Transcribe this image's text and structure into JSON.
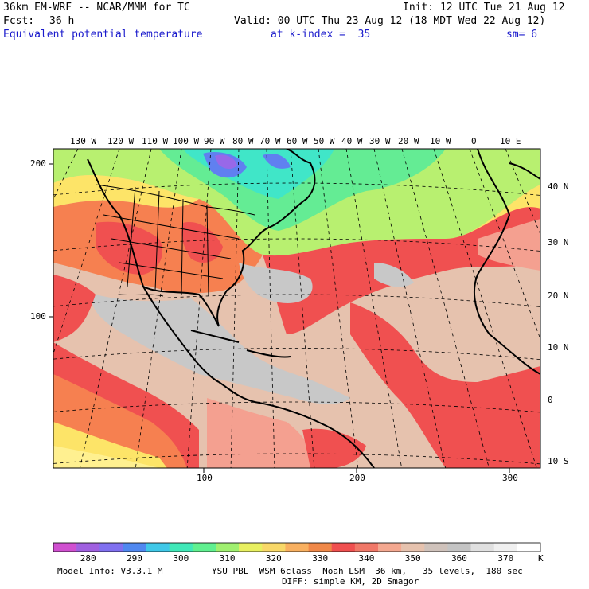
{
  "header": {
    "model_title": "36km EM-WRF -- NCAR/MMM for TC",
    "init": "Init: 12 UTC Tue 21 Aug 12",
    "forecast_label": "Fcst:",
    "forecast_hours": "36 h",
    "valid": "Valid: 00 UTC Thu 23 Aug 12 (18 MDT Wed 22 Aug 12)",
    "field_name": "Equivalent potential temperature",
    "level": "at k-index =  35",
    "smoothing": "sm= 6"
  },
  "map": {
    "longitude_labels": [
      "130 W",
      "120 W",
      "110 W",
      "100 W",
      "90 W",
      "80 W",
      "70 W",
      "60 W",
      "50 W",
      "40 W",
      "30 W",
      "20 W",
      "10 W",
      "0",
      "10 E"
    ],
    "latitude_labels": [
      "40 N",
      "30 N",
      "20 N",
      "10 N",
      "0",
      "10 S"
    ],
    "grid_y_labels": [
      "200",
      "100"
    ],
    "grid_x_labels": [
      "100",
      "200",
      "300"
    ],
    "colors": {
      "warm_red": "#f05050",
      "salmon": "#f4a090",
      "tan": "#e6c2ae",
      "gray": "#c8c8c8",
      "orange": "#f68050",
      "yellow": "#fde468",
      "light_yellow": "#fff090",
      "lime": "#b8f070",
      "green": "#64ec94",
      "teal": "#40e6c8",
      "blue": "#6080f0",
      "purple": "#9868e8"
    }
  },
  "colorbar": {
    "colors": [
      "#d050d0",
      "#a060e0",
      "#8070f0",
      "#5088f0",
      "#40c8e8",
      "#40e8b8",
      "#60f090",
      "#a0f070",
      "#e8f060",
      "#f8d868",
      "#f8b060",
      "#f08848",
      "#f05050",
      "#f07868",
      "#f4a890",
      "#e6c2ae",
      "#cfc2bb",
      "#c4c4c4",
      "#e0e0e0",
      "#f0f0f0",
      "#ffffff"
    ],
    "labels": [
      "280",
      "290",
      "300",
      "310",
      "320",
      "330",
      "340",
      "350",
      "360",
      "370"
    ],
    "unit": "K"
  },
  "footer": {
    "model_info": "Model Info: V3.3.1 M",
    "physics": "YSU PBL  WSM 6class  Noah LSM  36 km,   35 levels,  180 sec",
    "diffusion": "DIFF: simple KM, 2D Smagor"
  }
}
